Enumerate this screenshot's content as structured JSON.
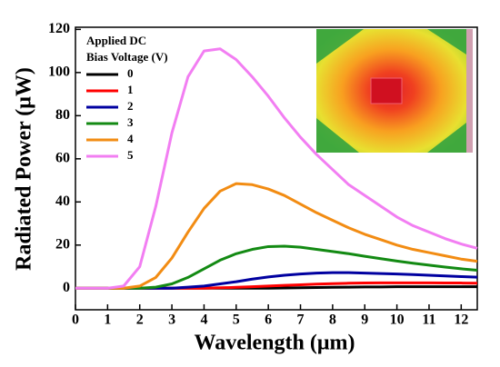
{
  "chart_data": {
    "type": "line",
    "xlabel": "Wavelength (μm)",
    "ylabel": "Radiated Power (μW)",
    "legend_title": [
      "Applied DC",
      "Bias Voltage (V)"
    ],
    "legend": "upper left",
    "x": [
      0,
      0.5,
      1,
      1.5,
      2,
      2.5,
      3,
      3.5,
      4,
      4.5,
      5,
      5.5,
      6,
      6.5,
      7,
      7.5,
      8,
      8.5,
      9,
      9.5,
      10,
      10.5,
      11,
      11.5,
      12,
      12.5
    ],
    "xlim": [
      0,
      12.5
    ],
    "xticks": [
      0,
      1,
      2,
      3,
      4,
      5,
      6,
      7,
      8,
      9,
      10,
      11,
      12
    ],
    "ylim": [
      -10,
      121
    ],
    "yticks": [
      0,
      20,
      40,
      60,
      80,
      100,
      120
    ],
    "series": [
      {
        "name": "0",
        "color": "#000000",
        "values": [
          0,
          0,
          0,
          0,
          0,
          0,
          0,
          0,
          0,
          0,
          0,
          0,
          0,
          0.1,
          0.2,
          0.3,
          0.4,
          0.5,
          0.6,
          0.6,
          0.7,
          0.7,
          0.7,
          0.7,
          0.7,
          0.7
        ]
      },
      {
        "name": "1",
        "color": "#ff0000",
        "values": [
          0,
          0,
          0,
          0,
          0,
          0,
          0,
          0,
          0,
          0.2,
          0.4,
          0.7,
          1,
          1.3,
          1.6,
          1.9,
          2.1,
          2.3,
          2.4,
          2.5,
          2.5,
          2.5,
          2.5,
          2.4,
          2.4,
          2.3
        ]
      },
      {
        "name": "2",
        "color": "#0000a0",
        "values": [
          0,
          0,
          0,
          0,
          0,
          0,
          0,
          0.5,
          1,
          2,
          3,
          4.2,
          5.2,
          6,
          6.6,
          7,
          7.2,
          7.2,
          7,
          6.8,
          6.6,
          6.3,
          6,
          5.7,
          5.4,
          5.1
        ]
      },
      {
        "name": "3",
        "color": "#138a13",
        "values": [
          0,
          0,
          0,
          0,
          0,
          0.5,
          2,
          5,
          9,
          13,
          16,
          18,
          19.3,
          19.5,
          19,
          18,
          17,
          16,
          14.8,
          13.7,
          12.6,
          11.6,
          10.7,
          9.8,
          9,
          8.3
        ]
      },
      {
        "name": "4",
        "color": "#f28c13",
        "values": [
          0,
          0,
          0,
          0,
          1,
          5,
          14,
          26,
          37,
          45,
          48.5,
          48,
          46,
          43,
          39,
          35,
          31.5,
          28,
          25,
          22.5,
          20,
          18,
          16.5,
          15,
          13.5,
          12.5
        ]
      },
      {
        "name": "5",
        "color": "#f27ef2",
        "values": [
          0,
          0,
          0,
          1,
          10,
          38,
          72,
          98,
          110,
          111,
          106,
          98,
          89,
          79,
          70,
          62,
          55,
          48,
          43,
          38,
          33,
          29,
          26,
          23,
          20.5,
          18.5
        ]
      }
    ]
  }
}
